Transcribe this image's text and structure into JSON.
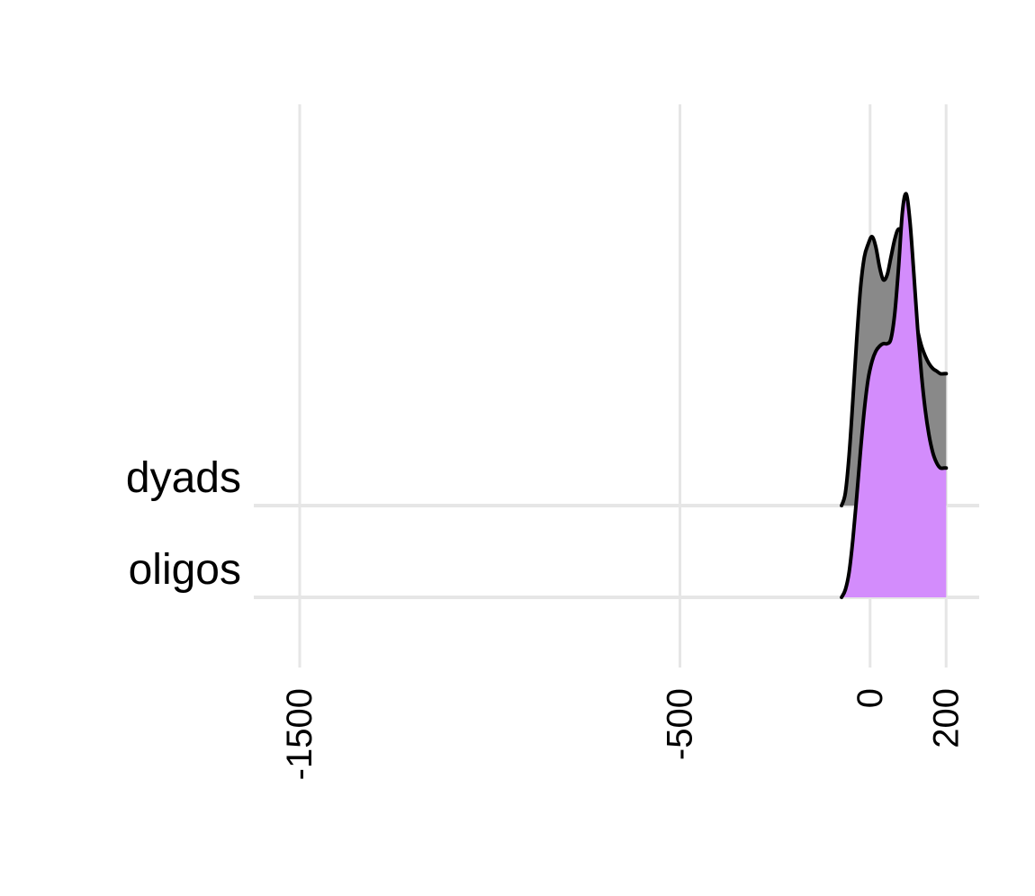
{
  "chart_data": {
    "type": "area",
    "subtype": "ridgeline-density",
    "title": "",
    "xlabel": "",
    "ylabel": "",
    "xlim": [
      -1650,
      250
    ],
    "x_ticks": [
      {
        "value": -1500,
        "label": "-1500"
      },
      {
        "value": -500,
        "label": "-500"
      },
      {
        "value": 0,
        "label": "0"
      },
      {
        "value": 200,
        "label": "200"
      }
    ],
    "tick_label_rotation": "vertical",
    "grid": true,
    "legend": "none",
    "series": [
      {
        "category": "oligos",
        "color": "#d38cfc",
        "x": [
          -75,
          -65,
          -55,
          -45,
          -35,
          -25,
          -15,
          -5,
          5,
          15,
          25,
          35,
          45,
          55,
          65,
          75,
          85,
          95,
          105,
          115,
          125,
          135,
          145,
          155,
          165,
          175,
          185,
          195,
          200
        ],
        "height": [
          0.0,
          0.03,
          0.1,
          0.23,
          0.4,
          0.58,
          0.74,
          0.86,
          0.93,
          0.97,
          0.99,
          1.0,
          1.0,
          1.02,
          1.12,
          1.3,
          1.52,
          1.59,
          1.48,
          1.28,
          1.06,
          0.88,
          0.74,
          0.64,
          0.57,
          0.53,
          0.51,
          0.51,
          0.51
        ]
      },
      {
        "category": "dyads",
        "color": "#898989",
        "x": [
          -75,
          -65,
          -55,
          -45,
          -35,
          -25,
          -15,
          -5,
          5,
          15,
          25,
          35,
          45,
          55,
          65,
          75,
          85,
          95,
          105,
          115,
          125,
          135,
          145,
          155,
          165,
          175,
          185,
          195,
          200
        ],
        "height": [
          0.0,
          0.05,
          0.2,
          0.42,
          0.66,
          0.86,
          0.98,
          1.03,
          1.06,
          1.02,
          0.94,
          0.89,
          0.91,
          0.98,
          1.05,
          1.09,
          1.06,
          0.97,
          0.87,
          0.77,
          0.69,
          0.63,
          0.59,
          0.56,
          0.54,
          0.53,
          0.52,
          0.52,
          0.52
        ]
      }
    ]
  }
}
